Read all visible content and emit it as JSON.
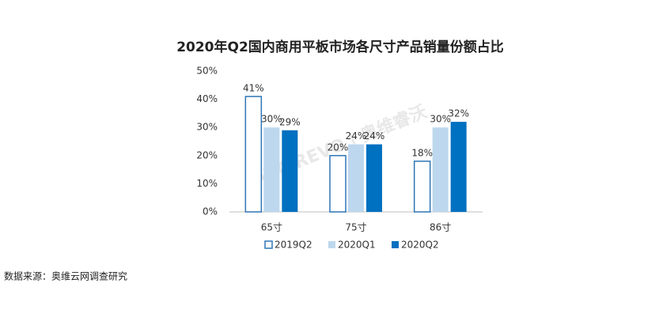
{
  "chart_data": {
    "type": "bar",
    "title": "2020年Q2国内商用平板市场各尺寸产品销量份额占比",
    "categories": [
      "65寸",
      "75寸",
      "86寸"
    ],
    "series": [
      {
        "name": "2019Q2",
        "color": "#ffffff",
        "stroke": "#2e75b6",
        "values": [
          41,
          20,
          18
        ],
        "value_labels": [
          "41%",
          "20%",
          "18%"
        ]
      },
      {
        "name": "2020Q1",
        "color": "#bdd7ee",
        "values": [
          30,
          24,
          30
        ],
        "value_labels": [
          "30%",
          "24%",
          "30%"
        ]
      },
      {
        "name": "2020Q2",
        "color": "#0070c0",
        "values": [
          29,
          24,
          32
        ],
        "value_labels": [
          "29%",
          "24%",
          "32%"
        ]
      }
    ],
    "ylim": [
      0,
      50
    ],
    "yticks": [
      {
        "value": 0,
        "label": "0%"
      },
      {
        "value": 10,
        "label": "10%"
      },
      {
        "value": 20,
        "label": "20%"
      },
      {
        "value": 30,
        "label": "30%"
      },
      {
        "value": 40,
        "label": "40%"
      },
      {
        "value": 50,
        "label": "50%"
      }
    ],
    "legend": "bottom",
    "watermark": "AVC REVO | 奥维睿沃",
    "source": "数据来源：奥维云网调查研究"
  }
}
